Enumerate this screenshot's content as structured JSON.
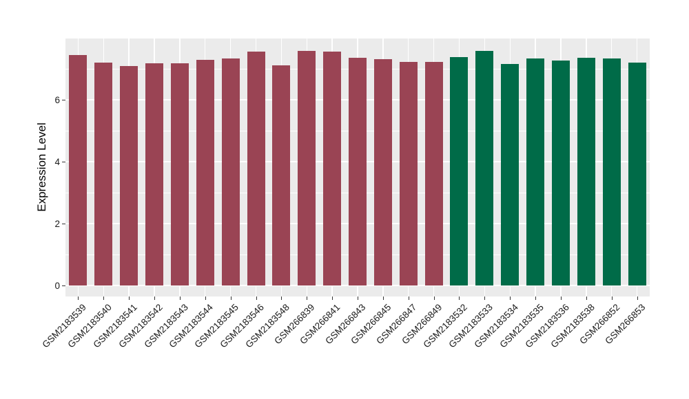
{
  "chart_data": {
    "type": "bar",
    "title": "",
    "xlabel": "",
    "ylabel": "Expression Level",
    "ylim": [
      0,
      8
    ],
    "yticks": [
      0,
      2,
      4,
      6
    ],
    "minor_yticks": [
      1,
      3,
      5,
      7
    ],
    "grid": true,
    "legend": false,
    "panel_background": "#EBEBEB",
    "grid_color": "#FFFFFF",
    "axis_text_color": "#1A1A1A",
    "tick_mark_color": "#333333",
    "categories": [
      "GSM2183539",
      "GSM2183540",
      "GSM2183541",
      "GSM2183542",
      "GSM2183543",
      "GSM2183544",
      "GSM2183545",
      "GSM2183546",
      "GSM2183548",
      "GSM266839",
      "GSM266841",
      "GSM266843",
      "GSM266845",
      "GSM266847",
      "GSM266849",
      "GSM2183532",
      "GSM2183533",
      "GSM2183534",
      "GSM2183535",
      "GSM2183536",
      "GSM2183538",
      "GSM266852",
      "GSM266853"
    ],
    "values": [
      7.45,
      7.19,
      7.1,
      7.17,
      7.17,
      7.28,
      7.34,
      7.56,
      7.11,
      7.58,
      7.56,
      7.36,
      7.32,
      7.22,
      7.22,
      7.37,
      7.58,
      7.16,
      7.33,
      7.26,
      7.35,
      7.34,
      7.19
    ],
    "groups": [
      "A",
      "A",
      "A",
      "A",
      "A",
      "A",
      "A",
      "A",
      "A",
      "A",
      "A",
      "A",
      "A",
      "A",
      "A",
      "B",
      "B",
      "B",
      "B",
      "B",
      "B",
      "B",
      "B"
    ],
    "group_colors": {
      "A": "#9A4454",
      "B": "#006B48"
    }
  }
}
